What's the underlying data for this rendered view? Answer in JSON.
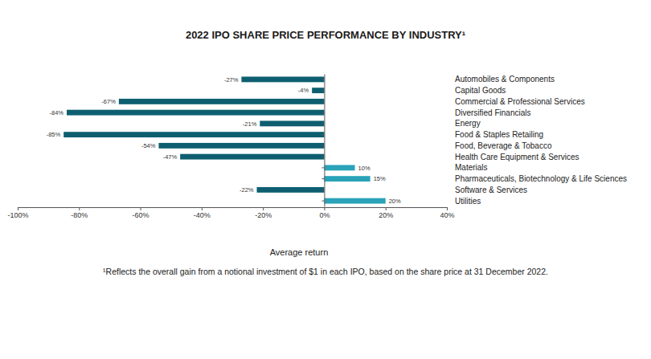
{
  "chart_data": {
    "type": "bar",
    "title": "2022 IPO SHARE PRICE PERFORMANCE BY INDUSTRY¹",
    "x_label": "Average return",
    "footnote": "¹Reflects the overall gain from a notional investment of $1 in each IPO, based on the share price at 31 December 2022.",
    "orientation": "horizontal",
    "data_labels": true,
    "grid": false,
    "categories": [
      "Automobiles & Components",
      "Capital Goods",
      "Commercial & Professional Services",
      "Diversified Financials",
      "Energy",
      "Food & Staples Retailing",
      "Food, Beverage & Tobacco",
      "Health Care Equipment & Services",
      "Materials",
      "Pharmaceuticals, Biotechnology & Life Sciences",
      "Software & Services",
      "Utilities"
    ],
    "values": [
      -27,
      -4,
      -67,
      -84,
      -21,
      -85,
      -54,
      -47,
      10,
      15,
      -22,
      20
    ],
    "value_labels": [
      "-27%",
      "-4%",
      "-67%",
      "-84%",
      "-21%",
      "-85%",
      "-54%",
      "-47%",
      "10%",
      "15%",
      "-22%",
      "20%"
    ],
    "colors": [
      "#0d5f70",
      "#0d5f70",
      "#0d5f70",
      "#0d5f70",
      "#0d5f70",
      "#0d5f70",
      "#0d5f70",
      "#0d5f70",
      "#2aa3b8",
      "#2aa3b8",
      "#0d5f70",
      "#2aa3b8"
    ],
    "xlim": [
      -100,
      40
    ],
    "xticks": [
      {
        "value": -100,
        "label": "-100%"
      },
      {
        "value": -80,
        "label": "-80%"
      },
      {
        "value": -60,
        "label": "-60%"
      },
      {
        "value": -40,
        "label": "-40%"
      },
      {
        "value": -20,
        "label": "-20%"
      },
      {
        "value": 0,
        "label": "0%"
      },
      {
        "value": 20,
        "label": "20%"
      },
      {
        "value": 40,
        "label": "40%"
      }
    ]
  }
}
